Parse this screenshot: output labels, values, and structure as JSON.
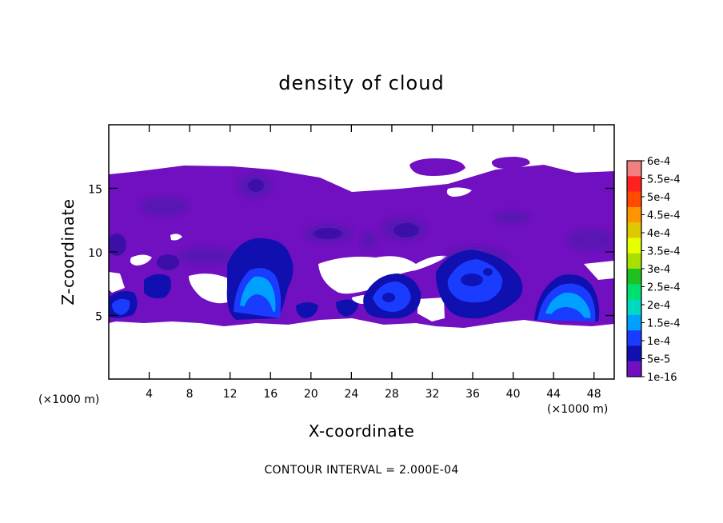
{
  "chart_data": {
    "type": "heatmap",
    "title": "density of cloud",
    "xlabel": "X-coordinate",
    "ylabel": "Z-coordinate",
    "x_unit_left": "(×1000 m)",
    "x_unit_right": "(×1000 m)",
    "xlim": [
      0,
      50
    ],
    "ylim": [
      0,
      20
    ],
    "x_ticks": [
      4,
      8,
      12,
      16,
      20,
      24,
      28,
      32,
      36,
      40,
      44,
      48
    ],
    "y_ticks": [
      5,
      10,
      15
    ],
    "footer": "CONTOUR INTERVAL = 2.000E-04",
    "colorbar": {
      "labels": [
        "6e-4",
        "5.5e-4",
        "5e-4",
        "4.5e-4",
        "4e-4",
        "3.5e-4",
        "3e-4",
        "2.5e-4",
        "2e-4",
        "1.5e-4",
        "1e-4",
        "5e-5",
        "1e-16"
      ],
      "colors": [
        "#f28080",
        "#ff2020",
        "#ff4a00",
        "#ff9500",
        "#e0c800",
        "#e8ff00",
        "#a8e000",
        "#20c020",
        "#00e070",
        "#00d8c0",
        "#00a0ff",
        "#1a3cff",
        "#1010b0",
        "#7010c0"
      ]
    },
    "cloud_layer": {
      "x_range": [
        0,
        50
      ],
      "z_range": [
        4.5,
        16.5
      ]
    },
    "cores": [
      {
        "x": 14.5,
        "z": 6.5,
        "level": "1.5e-4"
      },
      {
        "x": 35,
        "z": 7.5,
        "level": "1e-4"
      },
      {
        "x": 45,
        "z": 5.5,
        "level": "1.5e-4"
      },
      {
        "x": 28,
        "z": 6.5,
        "level": "5e-5"
      },
      {
        "x": 2,
        "z": 6,
        "level": "5e-5"
      }
    ]
  }
}
